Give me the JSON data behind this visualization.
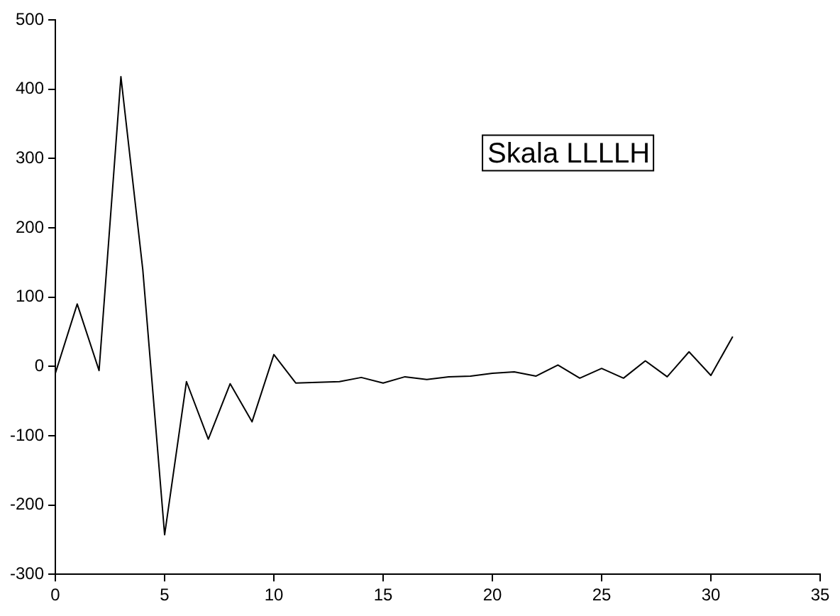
{
  "chart_data": {
    "type": "line",
    "x": [
      0,
      1,
      2,
      3,
      4,
      5,
      6,
      7,
      8,
      9,
      10,
      11,
      12,
      13,
      14,
      15,
      16,
      17,
      18,
      19,
      20,
      21,
      22,
      23,
      24,
      25,
      26,
      27,
      28,
      29,
      30,
      31
    ],
    "series": [
      {
        "color": "#000000",
        "values": [
          -10,
          90,
          -6,
          418,
          140,
          -243,
          -22,
          -105,
          -25,
          -80,
          17,
          -24,
          -23,
          -22,
          -16,
          -24,
          -15,
          -19,
          -15,
          -14,
          -10,
          -8,
          -14,
          2,
          -17,
          -3,
          -17,
          8,
          -15,
          21,
          -13,
          43
        ]
      }
    ],
    "xlim": [
      0,
      35
    ],
    "xticks": [
      0,
      5,
      10,
      15,
      20,
      25,
      30,
      35
    ],
    "ylim": [
      -300,
      500
    ],
    "yticks": [
      -300,
      -200,
      -100,
      0,
      100,
      200,
      300,
      400,
      500
    ],
    "grid": false,
    "legend": false,
    "marker": "none",
    "line_style": "solid",
    "annotations": [
      "Skala LLLLH"
    ]
  }
}
